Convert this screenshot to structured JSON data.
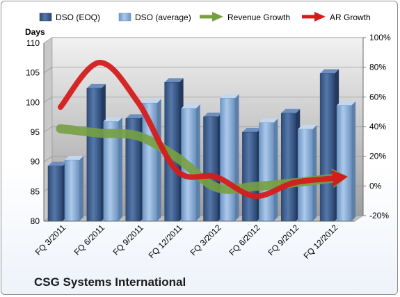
{
  "chart_data": {
    "type": "bar",
    "title": "CSG Systems International",
    "ylabel": "Days",
    "categories": [
      "FQ 3/2011",
      "FQ 6/2011",
      "FQ 9/2011",
      "FQ 12/2011",
      "FQ 3/2012",
      "FQ 6/2012",
      "FQ 9/2012",
      "FQ 12/2012"
    ],
    "ylim": [
      80,
      110
    ],
    "y_ticks": [
      "80",
      "85",
      "90",
      "95",
      "100",
      "105",
      "110"
    ],
    "y2lim": [
      -20,
      100
    ],
    "y2_ticks": [
      "-20%",
      "0%",
      "20%",
      "40%",
      "60%",
      "80%",
      "100%"
    ],
    "series": [
      {
        "name": "DSO (EOQ)",
        "kind": "bar",
        "axis": "left",
        "color": "#4a6b9c",
        "values": [
          89.3,
          102.4,
          97.3,
          103.4,
          97.6,
          95.0,
          98.2,
          104.9
        ]
      },
      {
        "name": "DSO (average)",
        "kind": "bar",
        "axis": "left",
        "color": "#94b8df",
        "values": [
          90.3,
          96.8,
          99.9,
          99.0,
          100.7,
          96.6,
          95.5,
          99.5
        ]
      },
      {
        "name": "Revenue Growth",
        "kind": "line",
        "axis": "right",
        "color": "#77a042",
        "values": [
          40.5,
          37.5,
          35.5,
          21.0,
          1.0,
          1.5,
          4.0,
          7.0
        ]
      },
      {
        "name": "AR Growth",
        "kind": "line",
        "axis": "right",
        "color": "#d41c1c",
        "values": [
          55.0,
          85.0,
          58.0,
          12.0,
          8.0,
          -5.0,
          4.0,
          7.0
        ]
      }
    ],
    "grid": true,
    "legend": "top"
  }
}
